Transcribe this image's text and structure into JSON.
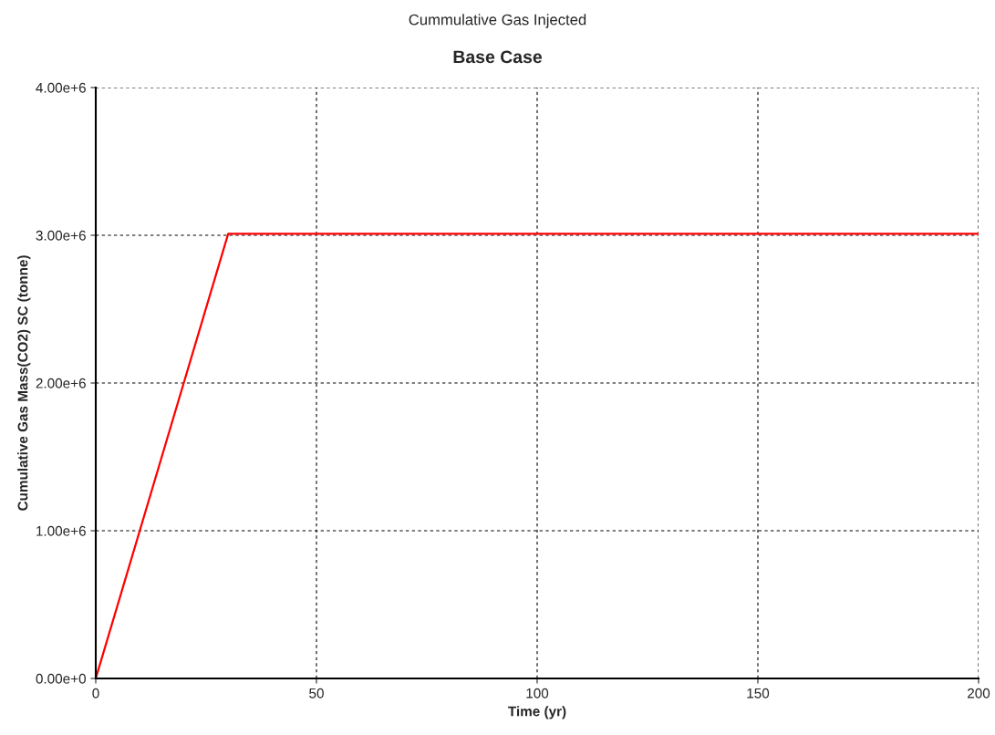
{
  "chart_data": {
    "type": "line",
    "title": "Cummulative Gas Injected",
    "subtitle": "Base Case",
    "xlabel": "Time (yr)",
    "ylabel": "Cumulative Gas Mass(CO2) SC (tonne)",
    "x": [
      0,
      30,
      200
    ],
    "series": [
      {
        "color": "#ff0000",
        "values": [
          0,
          3010000,
          3010000
        ]
      }
    ],
    "xlim": [
      0,
      200
    ],
    "xticks": [
      0,
      50,
      100,
      150,
      200
    ],
    "ylim": [
      0,
      4000000
    ],
    "yticks": [
      {
        "value": 0,
        "label": "0.00e+0"
      },
      {
        "value": 1000000,
        "label": "1.00e+6"
      },
      {
        "value": 2000000,
        "label": "2.00e+6"
      },
      {
        "value": 3000000,
        "label": "3.00e+6"
      },
      {
        "value": 4000000,
        "label": "4.00e+6"
      }
    ],
    "grid": true,
    "line_style": "solid",
    "marker": "none",
    "legend": false
  }
}
